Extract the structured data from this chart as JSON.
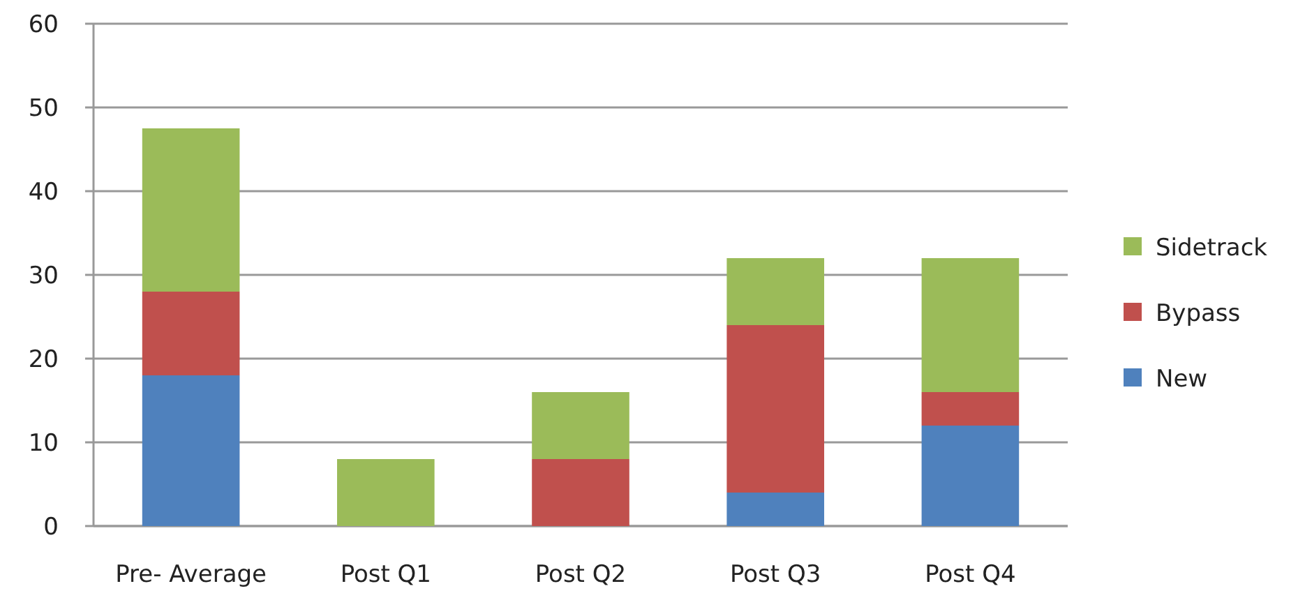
{
  "chart_data": {
    "type": "bar",
    "stacked": true,
    "categories": [
      "Pre- Average",
      "Post Q1",
      "Post Q2",
      "Post Q3",
      "Post Q4"
    ],
    "series": [
      {
        "name": "New",
        "color": "#4f81bd",
        "values": [
          18,
          0,
          0,
          4,
          12
        ]
      },
      {
        "name": "Bypass",
        "color": "#c0504d",
        "values": [
          10,
          0,
          8,
          20,
          4
        ]
      },
      {
        "name": "Sidetrack",
        "color": "#9bbb59",
        "values": [
          19.5,
          8,
          8,
          8,
          16
        ]
      }
    ],
    "ylim": [
      0,
      60
    ],
    "yticks": [
      0,
      10,
      20,
      30,
      40,
      50,
      60
    ],
    "grid": "y",
    "legend": "right"
  }
}
